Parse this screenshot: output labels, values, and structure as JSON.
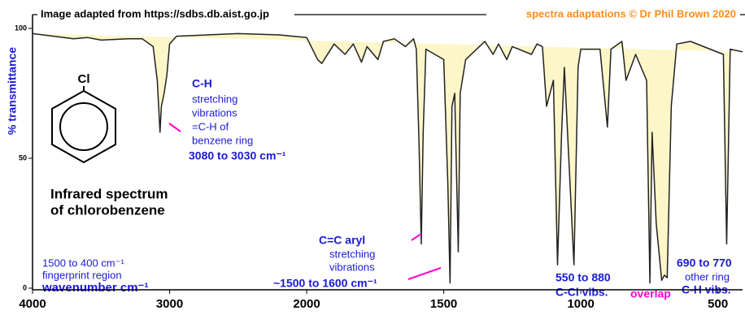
{
  "chart_data": {
    "type": "line",
    "credit": "Image adapted from https://sdbs.db.aist.go.jp",
    "copyright": "spectra adaptations © Dr Phil Brown 2020",
    "x_label": "wavenumber  cm⁻¹",
    "y_label": "% transmittance",
    "xlim": [
      4000,
      410
    ],
    "ylim": [
      0,
      100
    ],
    "xticks": [
      4000,
      3000,
      2000,
      1500,
      1000,
      500
    ],
    "yticks": [
      0,
      50,
      100
    ],
    "x_scale_break": 2000,
    "x_scale_factor": 2,
    "series": [
      {
        "name": "chlorobenzene",
        "color": "#222222",
        "fill": "#fdf6c8",
        "x": [
          4000,
          3700,
          3600,
          3500,
          3300,
          3200,
          3120,
          3090,
          3070,
          3060,
          3040,
          3020,
          3000,
          2950,
          2500,
          2200,
          2000,
          1960,
          1945,
          1900,
          1860,
          1830,
          1800,
          1780,
          1740,
          1720,
          1680,
          1640,
          1610,
          1600,
          1590,
          1582,
          1575,
          1565,
          1500,
          1485,
          1477,
          1470,
          1460,
          1447,
          1440,
          1420,
          1380,
          1350,
          1320,
          1300,
          1270,
          1250,
          1180,
          1160,
          1140,
          1125,
          1100,
          1085,
          1070,
          1060,
          1025,
          1010,
          1000,
          930,
          903,
          890,
          850,
          835,
          800,
          760,
          748,
          740,
          725,
          705,
          695,
          685,
          670,
          650,
          600,
          480,
          468,
          455,
          410
        ],
        "values": [
          98,
          96,
          96.5,
          95.5,
          96,
          96,
          93,
          80,
          60,
          70,
          75,
          82,
          94,
          97,
          98,
          97.5,
          96.5,
          88,
          86.5,
          94,
          90,
          94,
          87,
          93,
          88,
          95,
          96,
          93,
          96,
          92,
          55,
          17,
          60,
          92,
          88,
          40,
          2,
          70,
          75,
          14,
          75,
          88,
          92,
          95,
          90,
          94,
          88,
          93,
          90,
          94,
          93,
          70,
          80,
          9,
          60,
          85,
          9,
          85,
          92,
          92,
          62,
          92,
          95,
          80,
          90,
          80,
          2,
          60,
          25,
          3,
          5,
          4,
          70,
          94,
          95,
          90,
          17,
          92,
          91
        ]
      }
    ]
  },
  "annotations": {
    "substituent": "Cl",
    "title_lines": [
      "Infrared spectrum",
      "of chlorobenzene"
    ],
    "ch_title": "C-H",
    "ch_lines": [
      "stretching",
      "vibrations",
      "=C-H of",
      "benzene ring"
    ],
    "ch_range": "3080 to 3030 cm⁻¹",
    "fingerprint_lines": [
      "1500 to 400 cm⁻¹",
      "fingerprint region"
    ],
    "cc_title": "C=C aryl",
    "cc_lines": [
      "stretching",
      "vibrations"
    ],
    "cc_range": "~1500 to 1600 cm⁻¹",
    "ccl_lines": [
      "550 to 880",
      "C-Cl vibs."
    ],
    "overlap": "overlap",
    "ring_lines": [
      "690 to 770",
      "other ring",
      "C-H vibs."
    ]
  }
}
